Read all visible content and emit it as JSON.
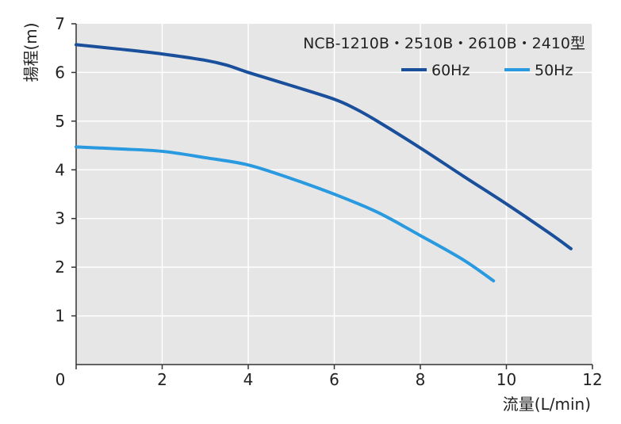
{
  "chart_data": {
    "type": "line",
    "title": "NCB-1210B・2510B・2610B・2410型",
    "xlabel": "流量(L/min)",
    "ylabel": "揚程(m)",
    "xlim": [
      0,
      12
    ],
    "ylim": [
      0,
      7
    ],
    "x_ticks": [
      0,
      2,
      4,
      6,
      8,
      10,
      12
    ],
    "y_ticks": [
      1,
      2,
      3,
      4,
      5,
      6,
      7
    ],
    "grid": true,
    "legend_position": "top-right",
    "series": [
      {
        "name": "60Hz",
        "color": "#1a4f9c",
        "points": [
          [
            0,
            6.57
          ],
          [
            1,
            6.48
          ],
          [
            2,
            6.38
          ],
          [
            3,
            6.25
          ],
          [
            3.5,
            6.15
          ],
          [
            4,
            6.0
          ],
          [
            5,
            5.73
          ],
          [
            6,
            5.45
          ],
          [
            6.5,
            5.25
          ],
          [
            7,
            5.0
          ],
          [
            8,
            4.45
          ],
          [
            9,
            3.87
          ],
          [
            10,
            3.3
          ],
          [
            11,
            2.7
          ],
          [
            11.5,
            2.38
          ]
        ]
      },
      {
        "name": "50Hz",
        "color": "#2a9ae0",
        "points": [
          [
            0,
            4.47
          ],
          [
            1,
            4.43
          ],
          [
            2,
            4.38
          ],
          [
            3,
            4.25
          ],
          [
            4,
            4.1
          ],
          [
            5,
            3.82
          ],
          [
            6,
            3.5
          ],
          [
            7,
            3.13
          ],
          [
            8,
            2.65
          ],
          [
            9,
            2.15
          ],
          [
            9.7,
            1.72
          ]
        ]
      }
    ]
  }
}
